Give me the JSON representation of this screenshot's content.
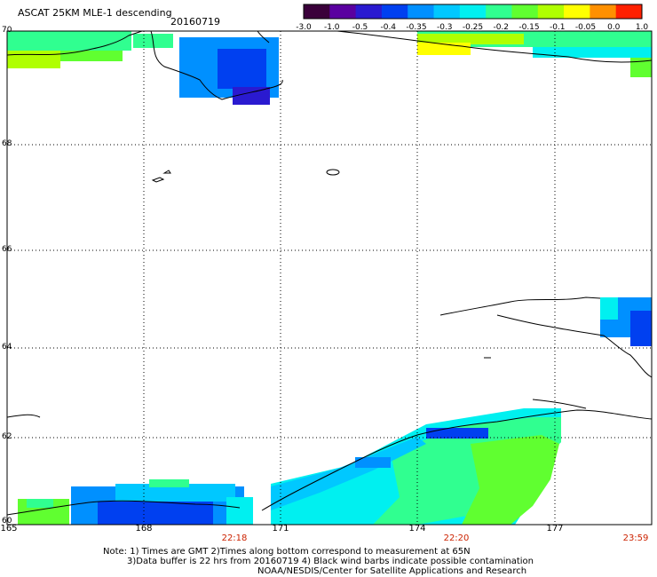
{
  "header": {
    "title": "ASCAT 25KM MLE-1 descending",
    "date": "20160719"
  },
  "colorbar": {
    "labels": [
      "-3.0",
      "-1.0",
      "-0.5",
      "-0.4",
      "-0.35",
      "-0.3",
      "-0.25",
      "-0.2",
      "-0.15",
      "-0.1",
      "-0.05",
      "0.0",
      "1.0"
    ],
    "colors": [
      "#3a003a",
      "#5a00a0",
      "#2a1ad0",
      "#0040f0",
      "#0090ff",
      "#00c8ff",
      "#00f0f0",
      "#30ff90",
      "#60ff30",
      "#b0ff00",
      "#ffff00",
      "#ff9000",
      "#ff2000"
    ]
  },
  "map": {
    "lat_labels": [
      "70",
      "68",
      "66",
      "64",
      "62",
      "60"
    ],
    "lon_labels": [
      "165",
      "168",
      "171",
      "174",
      "177"
    ],
    "time_labels": [
      "22:18",
      "22:20",
      "23:59"
    ],
    "lat_range": [
      60,
      70
    ],
    "lon_range": [
      165,
      179.4
    ],
    "grid": true
  },
  "notes": {
    "line1": "Note: 1) Times are GMT 2)Times along bottom correspond to measurement at 65N",
    "line2": "3)Data buffer is 22 hrs from 20160719 4) Black wind barbs indicate possible contamination",
    "line3": "NOAA/NESDIS/Center for Satellite Applications and Research"
  }
}
